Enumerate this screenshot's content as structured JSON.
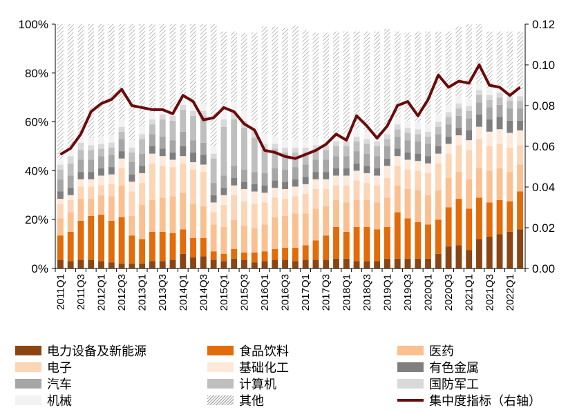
{
  "chart_data": {
    "type": "bar",
    "stacked": true,
    "title": "",
    "xlabel": "",
    "ylabel": "",
    "ylim": [
      0,
      100
    ],
    "y_ticks": [
      "0%",
      "20%",
      "40%",
      "60%",
      "80%",
      "100%"
    ],
    "y2lim": [
      0,
      0.12
    ],
    "y2_ticks": [
      "0.00",
      "0.02",
      "0.04",
      "0.06",
      "0.08",
      "0.10",
      "0.12"
    ],
    "grid": false,
    "legend_position": "bottom",
    "categories": [
      "2011Q1",
      "2011Q2",
      "2011Q3",
      "2011Q4",
      "2012Q1",
      "2012Q2",
      "2012Q3",
      "2012Q4",
      "2013Q1",
      "2013Q2",
      "2013Q3",
      "2013Q4",
      "2014Q1",
      "2014Q2",
      "2014Q3",
      "2014Q4",
      "2015Q1",
      "2015Q2",
      "2015Q3",
      "2015Q4",
      "2016Q1",
      "2016Q2",
      "2016Q3",
      "2016Q4",
      "2017Q1",
      "2017Q2",
      "2017Q3",
      "2017Q4",
      "2018Q1",
      "2018Q2",
      "2018Q3",
      "2018Q4",
      "2019Q1",
      "2019Q2",
      "2019Q3",
      "2019Q4",
      "2020Q1",
      "2020Q2",
      "2020Q3",
      "2020Q4",
      "2021Q1",
      "2021Q2",
      "2021Q3",
      "2021Q4",
      "2022Q1",
      "2022Q2"
    ],
    "x_tick_labels": [
      "2011Q1",
      "2011Q3",
      "2012Q1",
      "2012Q3",
      "2013Q1",
      "2013Q3",
      "2014Q1",
      "2014Q3",
      "2015Q1",
      "2015Q3",
      "2016Q1",
      "2016Q3",
      "2017Q1",
      "2017Q3",
      "2018Q1",
      "2018Q3",
      "2019Q1",
      "2019Q3",
      "2020Q1",
      "2020Q3",
      "2021Q1",
      "2021Q3",
      "2022Q1"
    ],
    "series": [
      {
        "name": "电力设备及新能源",
        "color": "#8b4513",
        "values": [
          3.5,
          3,
          3.5,
          3.5,
          3,
          2.5,
          2,
          2,
          2,
          3,
          3,
          3.5,
          6,
          4.5,
          5,
          3.5,
          3,
          4,
          3.5,
          2.5,
          3,
          3.5,
          3.5,
          3,
          3.5,
          3.5,
          3.5,
          4,
          4,
          3,
          3,
          3,
          4,
          4,
          4,
          4,
          4,
          6,
          9,
          9.5,
          7.5,
          12,
          13,
          14,
          15,
          16
        ]
      },
      {
        "name": "食品饮料",
        "color": "#e26b0a",
        "values": [
          10,
          12,
          16,
          18,
          19,
          17,
          19,
          11.5,
          10,
          12,
          12,
          11,
          10,
          8,
          7.5,
          3.5,
          3,
          4,
          3,
          4,
          4,
          4.5,
          5,
          5.5,
          6,
          8,
          10,
          13,
          11,
          14,
          14,
          13,
          13,
          19,
          16.5,
          15,
          14,
          14,
          16,
          19,
          17,
          17,
          14,
          14,
          12.5,
          15.5
        ]
      },
      {
        "name": "医药",
        "color": "#fac090",
        "values": [
          7,
          8,
          9,
          7,
          8,
          10,
          13,
          8,
          14,
          13,
          14,
          15,
          15,
          14,
          13,
          11,
          11,
          12,
          11,
          10,
          11,
          13,
          13,
          14,
          13,
          13,
          12,
          11,
          12,
          11,
          11,
          11,
          12,
          11,
          12,
          13,
          12,
          12,
          12,
          11,
          12,
          12,
          13,
          13,
          12,
          11
        ]
      },
      {
        "name": "电子",
        "color": "#fcd5b5",
        "values": [
          6,
          5,
          5,
          5,
          4,
          5,
          7,
          10,
          9,
          15,
          13,
          12,
          12,
          14,
          14,
          5,
          9,
          10,
          10,
          10,
          9,
          8,
          7,
          7,
          8,
          8,
          7,
          6,
          7,
          8,
          7,
          7,
          8,
          8,
          8,
          8,
          9,
          11,
          10,
          11,
          12,
          12,
          10,
          10,
          10,
          8
        ]
      },
      {
        "name": "基础化工",
        "color": "#fde9d9",
        "values": [
          2,
          2,
          3,
          3,
          4,
          4,
          4,
          4,
          4,
          4,
          4,
          3,
          3,
          3,
          3,
          4,
          4,
          4,
          5,
          5,
          4,
          4,
          4,
          4,
          4,
          4,
          4,
          4,
          4,
          4,
          4,
          4,
          5,
          4,
          4,
          4,
          4,
          4,
          4,
          4,
          4,
          5,
          6,
          6,
          6,
          6
        ]
      },
      {
        "name": "有色金属",
        "color": "#7f7f7f",
        "values": [
          3,
          3,
          3,
          3,
          3,
          3,
          3,
          3,
          3,
          3,
          3,
          3,
          4,
          4,
          4,
          3,
          3,
          3,
          3,
          3,
          3,
          3,
          3,
          3,
          3,
          3,
          3,
          3,
          3,
          3,
          3,
          3,
          3,
          3,
          3,
          3,
          3,
          3,
          3,
          3,
          4,
          5,
          5,
          5,
          5,
          4
        ]
      },
      {
        "name": "汽车",
        "color": "#a6a6a6",
        "values": [
          5,
          5,
          5,
          5,
          5,
          5,
          5,
          5,
          5,
          5,
          5,
          5,
          6,
          5,
          5,
          5,
          5,
          5,
          5,
          5,
          5,
          5,
          5,
          5,
          5,
          5,
          5,
          5,
          5,
          5,
          5,
          5,
          5,
          5,
          5,
          5,
          5,
          5,
          5,
          5,
          5,
          5,
          5,
          5,
          5,
          5
        ]
      },
      {
        "name": "计算机",
        "color": "#bfbfbf",
        "values": [
          4,
          5,
          4,
          4,
          3,
          3,
          3,
          4,
          6,
          4,
          7,
          8,
          9,
          10,
          11,
          10,
          20,
          19,
          17,
          14,
          10,
          8,
          7,
          6,
          5,
          4,
          4,
          4,
          4,
          4,
          4,
          4,
          3,
          3,
          3,
          3,
          3,
          3,
          3,
          3,
          3,
          3,
          3,
          3,
          3,
          3
        ]
      },
      {
        "name": "国防军工",
        "color": "#d9d9d9",
        "values": [
          2,
          3,
          3,
          2,
          2,
          2,
          2,
          2,
          2,
          2,
          2,
          2,
          2,
          2,
          2,
          2,
          3,
          3,
          3,
          3,
          2,
          2,
          2,
          2,
          2,
          2,
          2,
          2,
          2,
          2,
          2,
          2,
          2,
          2,
          2,
          2,
          2,
          2,
          2,
          2,
          2,
          2,
          2,
          2,
          2,
          2
        ]
      },
      {
        "name": "机械",
        "color": "#f2f2f2",
        "values": [
          2,
          3,
          3,
          3,
          3,
          3,
          3,
          3,
          3,
          3,
          3,
          3,
          3,
          3,
          3,
          3,
          4,
          4,
          4,
          4,
          4,
          3,
          3,
          3,
          3,
          3,
          3,
          3,
          3,
          3,
          3,
          3,
          3,
          3,
          3,
          3,
          3,
          3,
          3,
          3,
          3,
          3,
          3,
          3,
          3,
          3
        ]
      },
      {
        "name": "其他",
        "pattern": "hatch",
        "color": "#a6a6a6",
        "values": [
          55.5,
          51,
          45.5,
          46.5,
          46,
          45.5,
          39,
          47.5,
          42,
          36,
          34,
          34.5,
          30,
          32.5,
          32.5,
          50,
          32,
          29,
          32,
          36,
          44,
          45,
          46,
          47,
          45,
          43,
          43,
          42,
          42,
          40,
          41,
          42,
          40,
          35,
          36,
          37,
          38,
          34,
          30,
          28.5,
          30.5,
          24,
          23,
          22,
          23.5,
          23.5
        ]
      },
      {
        "name": "集中度指标（右轴）",
        "type": "line",
        "axis": "right",
        "color": "#6b0a0a",
        "values": [
          0.056,
          0.059,
          0.066,
          0.077,
          0.081,
          0.083,
          0.088,
          0.08,
          0.079,
          0.078,
          0.078,
          0.076,
          0.085,
          0.082,
          0.073,
          0.074,
          0.079,
          0.077,
          0.071,
          0.068,
          0.058,
          0.057,
          0.055,
          0.054,
          0.056,
          0.058,
          0.061,
          0.066,
          0.063,
          0.075,
          0.07,
          0.064,
          0.07,
          0.08,
          0.082,
          0.075,
          0.083,
          0.095,
          0.089,
          0.092,
          0.091,
          0.1,
          0.09,
          0.089,
          0.085,
          0.089
        ]
      }
    ]
  }
}
